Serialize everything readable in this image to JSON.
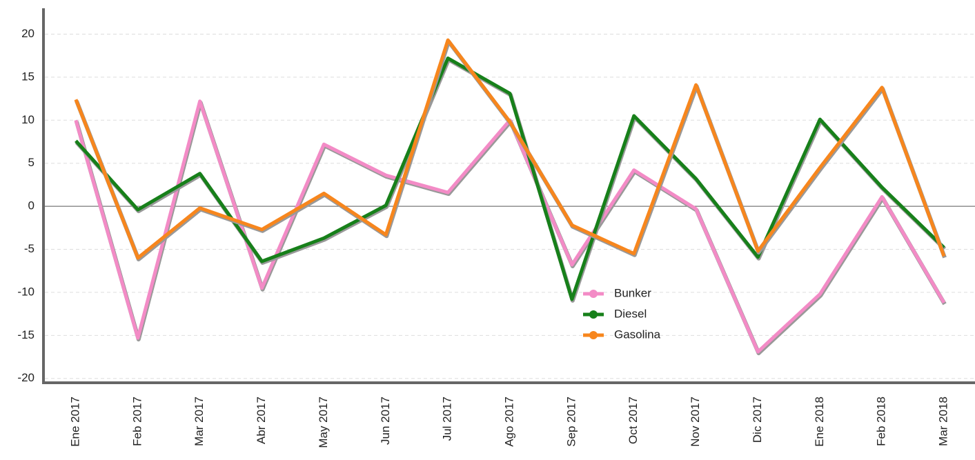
{
  "chart_data": {
    "type": "line",
    "categories": [
      "Ene 2017",
      "Feb 2017",
      "Mar 2017",
      "Abr 2017",
      "May 2017",
      "Jun 2017",
      "Jul 2017",
      "Ago 2017",
      "Sep 2017",
      "Oct 2017",
      "Nov 2017",
      "Dic 2017",
      "Ene 2018",
      "Feb 2018",
      "Mar 2018"
    ],
    "series": [
      {
        "name": "Bunker",
        "color": "#f38bc6",
        "values": [
          10,
          -15.3,
          12.2,
          -9.5,
          7.2,
          3.6,
          1.6,
          10,
          -6.8,
          4.2,
          -0.3,
          -16.9,
          -10.2,
          1.1,
          -11.2
        ]
      },
      {
        "name": "Diesel",
        "color": "#17801a",
        "values": [
          7.6,
          -0.4,
          3.8,
          -6.4,
          -3.7,
          0.1,
          17.2,
          13.1,
          -10.8,
          10.5,
          3.2,
          -5.9,
          10.1,
          2.2,
          -4.8
        ]
      },
      {
        "name": "Gasolina",
        "color": "#f7861d",
        "values": [
          12.4,
          -6.0,
          -0.2,
          -2.7,
          1.5,
          -3.3,
          19.3,
          9.8,
          -2.2,
          -5.5,
          14.1,
          -5.2,
          4.5,
          13.8,
          -5.8
        ]
      }
    ],
    "ylim": [
      -20.5,
      23
    ],
    "yticks": [
      -20,
      -15,
      -10,
      -5,
      0,
      5,
      10,
      15,
      20
    ],
    "grid": true
  }
}
